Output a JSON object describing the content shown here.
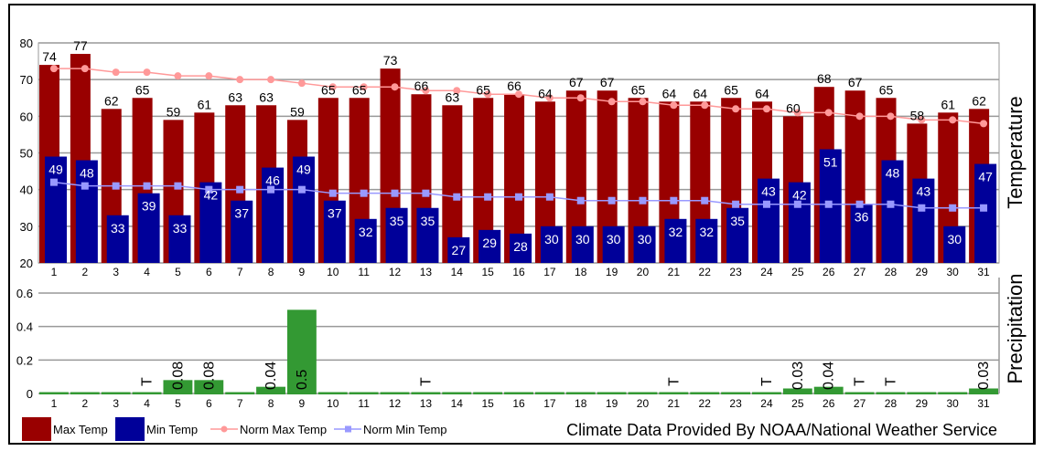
{
  "chart_data": [
    {
      "type": "bar",
      "ylabel": "Temperature",
      "ylim": [
        20,
        80
      ],
      "yticks": [
        20,
        30,
        40,
        50,
        60,
        70,
        80
      ],
      "grid": true,
      "categories": [
        "1",
        "2",
        "3",
        "4",
        "5",
        "6",
        "7",
        "8",
        "9",
        "10",
        "11",
        "12",
        "13",
        "14",
        "15",
        "16",
        "17",
        "18",
        "19",
        "20",
        "21",
        "22",
        "23",
        "24",
        "25",
        "26",
        "27",
        "28",
        "29",
        "30",
        "31"
      ],
      "series": [
        {
          "name": "Max Temp",
          "type": "bar",
          "color": "#990000",
          "values": [
            74,
            77,
            62,
            65,
            59,
            61,
            63,
            63,
            59,
            65,
            65,
            73,
            66,
            63,
            65,
            66,
            64,
            67,
            67,
            65,
            64,
            64,
            65,
            64,
            60,
            68,
            67,
            65,
            58,
            61,
            62
          ]
        },
        {
          "name": "Min Temp",
          "type": "bar",
          "color": "#000099",
          "values": [
            49,
            48,
            33,
            39,
            33,
            42,
            37,
            46,
            49,
            37,
            32,
            35,
            35,
            27,
            29,
            28,
            30,
            30,
            30,
            30,
            32,
            32,
            35,
            43,
            42,
            51,
            36,
            48,
            43,
            30,
            47
          ]
        },
        {
          "name": "Norm Max Temp",
          "type": "line",
          "color": "#ff9999",
          "values": [
            73,
            73,
            72,
            72,
            71,
            71,
            70,
            70,
            69,
            68,
            68,
            68,
            67,
            67,
            66,
            66,
            65,
            65,
            64,
            64,
            63,
            63,
            62,
            62,
            61,
            61,
            60,
            60,
            59,
            59,
            58
          ]
        },
        {
          "name": "Norm Min Temp",
          "type": "line",
          "color": "#9999ff",
          "values": [
            42,
            41,
            41,
            41,
            41,
            40,
            40,
            40,
            40,
            39,
            39,
            39,
            39,
            38,
            38,
            38,
            38,
            37,
            37,
            37,
            37,
            37,
            36,
            36,
            36,
            36,
            36,
            36,
            35,
            35,
            35
          ]
        }
      ]
    },
    {
      "type": "bar",
      "ylabel": "Precipitation",
      "ylim": [
        0,
        0.6
      ],
      "yticks": [
        "0",
        "0.2",
        "0.4",
        "0.6"
      ],
      "grid": true,
      "categories": [
        "1",
        "2",
        "3",
        "4",
        "5",
        "6",
        "7",
        "8",
        "9",
        "10",
        "11",
        "12",
        "13",
        "14",
        "15",
        "16",
        "17",
        "18",
        "19",
        "20",
        "21",
        "22",
        "23",
        "24",
        "25",
        "26",
        "27",
        "28",
        "29",
        "30",
        "31"
      ],
      "color": "#339933",
      "values": [
        0,
        0,
        0,
        0,
        0.08,
        0.08,
        0,
        0.04,
        0.5,
        0,
        0,
        0,
        0,
        0,
        0,
        0,
        0,
        0,
        0,
        0,
        0,
        0,
        0,
        0,
        0.03,
        0.04,
        0,
        0,
        0,
        0,
        0.03
      ],
      "labels": [
        "",
        "",
        "",
        "T",
        "0.08",
        "0.08",
        "",
        "0.04",
        "0.5",
        "",
        "",
        "",
        "T",
        "",
        "",
        "",
        "",
        "",
        "",
        "",
        "T",
        "",
        "",
        "T",
        "0.03",
        "0.04",
        "T",
        "T",
        "",
        "",
        "0.03"
      ]
    }
  ],
  "legend": {
    "items": [
      {
        "label": "Max Temp",
        "color": "#990000",
        "kind": "box"
      },
      {
        "label": "Min Temp",
        "color": "#000099",
        "kind": "box"
      },
      {
        "label": "Norm Max Temp",
        "color": "#ff9999",
        "kind": "line-circle"
      },
      {
        "label": "Norm Min Temp",
        "color": "#9999ff",
        "kind": "line-square"
      }
    ],
    "placement": "bottom-left"
  },
  "credit": "Climate Data Provided By NOAA/National Weather Service"
}
